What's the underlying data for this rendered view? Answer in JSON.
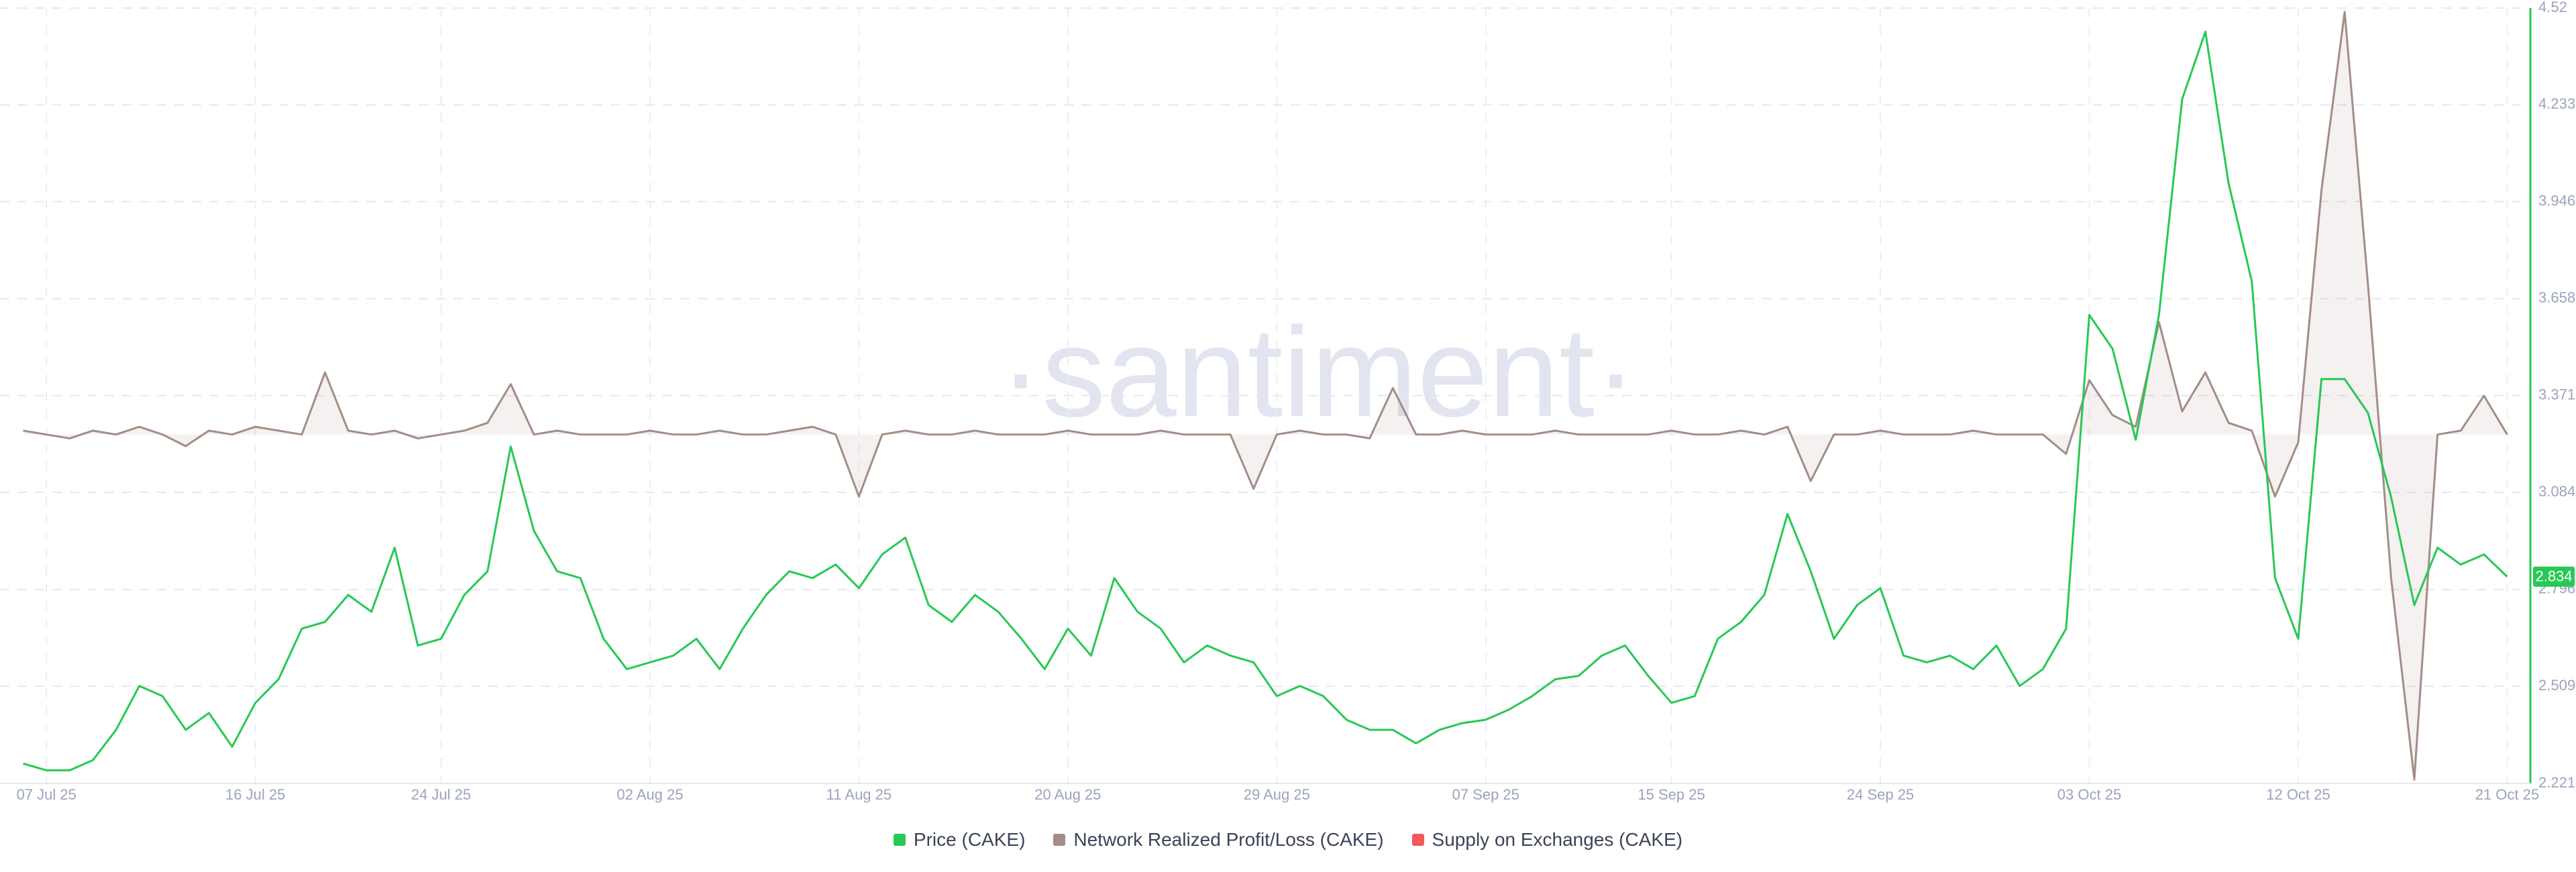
{
  "chart_data": {
    "type": "line",
    "watermark": "·santiment·",
    "x": [
      "2025-07-06",
      "2025-07-07",
      "2025-07-08",
      "2025-07-09",
      "2025-07-10",
      "2025-07-11",
      "2025-07-12",
      "2025-07-13",
      "2025-07-14",
      "2025-07-15",
      "2025-07-16",
      "2025-07-17",
      "2025-07-18",
      "2025-07-19",
      "2025-07-20",
      "2025-07-21",
      "2025-07-22",
      "2025-07-23",
      "2025-07-24",
      "2025-07-25",
      "2025-07-26",
      "2025-07-27",
      "2025-07-28",
      "2025-07-29",
      "2025-07-30",
      "2025-07-31",
      "2025-08-01",
      "2025-08-02",
      "2025-08-03",
      "2025-08-04",
      "2025-08-05",
      "2025-08-06",
      "2025-08-07",
      "2025-08-08",
      "2025-08-09",
      "2025-08-10",
      "2025-08-11",
      "2025-08-12",
      "2025-08-13",
      "2025-08-14",
      "2025-08-15",
      "2025-08-16",
      "2025-08-17",
      "2025-08-18",
      "2025-08-19",
      "2025-08-20",
      "2025-08-21",
      "2025-08-22",
      "2025-08-23",
      "2025-08-24",
      "2025-08-25",
      "2025-08-26",
      "2025-08-27",
      "2025-08-28",
      "2025-08-29",
      "2025-08-30",
      "2025-08-31",
      "2025-09-01",
      "2025-09-02",
      "2025-09-03",
      "2025-09-04",
      "2025-09-05",
      "2025-09-06",
      "2025-09-07",
      "2025-09-08",
      "2025-09-09",
      "2025-09-10",
      "2025-09-11",
      "2025-09-12",
      "2025-09-13",
      "2025-09-14",
      "2025-09-15",
      "2025-09-16",
      "2025-09-17",
      "2025-09-18",
      "2025-09-19",
      "2025-09-20",
      "2025-09-21",
      "2025-09-22",
      "2025-09-23",
      "2025-09-24",
      "2025-09-25",
      "2025-09-26",
      "2025-09-27",
      "2025-09-28",
      "2025-09-29",
      "2025-09-30",
      "2025-10-01",
      "2025-10-02",
      "2025-10-03",
      "2025-10-04",
      "2025-10-05",
      "2025-10-06",
      "2025-10-07",
      "2025-10-08",
      "2025-10-09",
      "2025-10-10",
      "2025-10-11",
      "2025-10-12",
      "2025-10-13",
      "2025-10-14",
      "2025-10-15",
      "2025-10-16",
      "2025-10-17",
      "2025-10-18",
      "2025-10-19",
      "2025-10-20",
      "2025-10-21"
    ],
    "xlim": [
      "2025-07-05",
      "2025-10-22"
    ],
    "xticks": [
      {
        "value": "2025-07-07",
        "label": "07 Jul 25"
      },
      {
        "value": "2025-07-16",
        "label": "16 Jul 25"
      },
      {
        "value": "2025-07-24",
        "label": "24 Jul 25"
      },
      {
        "value": "2025-08-02",
        "label": "02 Aug 25"
      },
      {
        "value": "2025-08-11",
        "label": "11 Aug 25"
      },
      {
        "value": "2025-08-20",
        "label": "20 Aug 25"
      },
      {
        "value": "2025-08-29",
        "label": "29 Aug 25"
      },
      {
        "value": "2025-09-07",
        "label": "07 Sep 25"
      },
      {
        "value": "2025-09-15",
        "label": "15 Sep 25"
      },
      {
        "value": "2025-09-24",
        "label": "24 Sep 25"
      },
      {
        "value": "2025-10-03",
        "label": "03 Oct 25"
      },
      {
        "value": "2025-10-12",
        "label": "12 Oct 25"
      },
      {
        "value": "2025-10-21",
        "label": "21 Oct 25"
      }
    ],
    "ylim": [
      2.221,
      4.52
    ],
    "yticks": [
      2.221,
      2.509,
      2.796,
      3.084,
      3.371,
      3.658,
      3.946,
      4.233,
      4.52
    ],
    "y2lim": [
      -9,
      11
    ],
    "grid": true,
    "series": [
      {
        "name": "Price (CAKE)",
        "color": "#26c953",
        "values": [
          2.28,
          2.26,
          2.26,
          2.29,
          2.38,
          2.51,
          2.48,
          2.38,
          2.43,
          2.33,
          2.46,
          2.53,
          2.68,
          2.7,
          2.78,
          2.73,
          2.92,
          2.63,
          2.65,
          2.78,
          2.85,
          3.22,
          2.97,
          2.85,
          2.83,
          2.65,
          2.56,
          2.58,
          2.6,
          2.65,
          2.56,
          2.68,
          2.78,
          2.85,
          2.83,
          2.87,
          2.8,
          2.9,
          2.95,
          2.75,
          2.7,
          2.78,
          2.73,
          2.65,
          2.56,
          2.68,
          2.6,
          2.83,
          2.73,
          2.68,
          2.58,
          2.63,
          2.6,
          2.58,
          2.48,
          2.51,
          2.48,
          2.41,
          2.38,
          2.38,
          2.34,
          2.38,
          2.4,
          2.41,
          2.44,
          2.48,
          2.53,
          2.54,
          2.6,
          2.63,
          2.54,
          2.46,
          2.48,
          2.65,
          2.7,
          2.78,
          3.02,
          2.85,
          2.65,
          2.75,
          2.8,
          2.6,
          2.58,
          2.6,
          2.56,
          2.63,
          2.51,
          2.56,
          2.68,
          3.61,
          3.51,
          3.24,
          3.61,
          4.25,
          4.45,
          4.0,
          3.71,
          2.83,
          2.65,
          3.42,
          3.42,
          3.32,
          3.07,
          2.75,
          2.92,
          2.87,
          2.9,
          2.834
        ]
      },
      {
        "name": "Network Realized Profit/Loss (CAKE)",
        "color": "#a38d86",
        "axis": "y2",
        "values": [
          0.1,
          0,
          -0.1,
          0.1,
          0,
          0.2,
          0,
          -0.3,
          0.1,
          0,
          0.2,
          0.1,
          0,
          1.6,
          0.1,
          0,
          0.1,
          -0.1,
          0,
          0.1,
          0.3,
          1.3,
          0,
          0.1,
          0,
          0,
          0,
          0.1,
          0,
          0,
          0.1,
          0,
          0,
          0.1,
          0.2,
          0,
          -1.6,
          0,
          0.1,
          0,
          0,
          0.1,
          0,
          0,
          0,
          0.1,
          0,
          0,
          0,
          0.1,
          0,
          0,
          0,
          -1.4,
          0,
          0.1,
          0,
          0,
          -0.1,
          1.2,
          0,
          0,
          0.1,
          0,
          0,
          0,
          0.1,
          0,
          0,
          0,
          0,
          0.1,
          0,
          0,
          0.1,
          0,
          0.2,
          -1.2,
          0,
          0,
          0.1,
          0,
          0,
          0,
          0.1,
          0,
          0,
          0,
          -0.5,
          1.4,
          0.5,
          0.2,
          2.9,
          0.6,
          1.6,
          0.3,
          0.1,
          -1.6,
          -0.2,
          6.3,
          10.9,
          3.9,
          -3.7,
          -8.9,
          0,
          0.1,
          1.0,
          0
        ]
      },
      {
        "name": "Supply on Exchanges (CAKE)",
        "color": "#f25a5a",
        "values": [
          null,
          null,
          null,
          null,
          null,
          null,
          null,
          null,
          null,
          null,
          null,
          null,
          null,
          null,
          null,
          null,
          null,
          null,
          null,
          null,
          null,
          null,
          null,
          null,
          null,
          null,
          null,
          null,
          null,
          null,
          null,
          null,
          null,
          null,
          null,
          null,
          null,
          null,
          null,
          null,
          null,
          null,
          null,
          null,
          null,
          null,
          null,
          null,
          null,
          null,
          null,
          null,
          null,
          null,
          null,
          null,
          null,
          null,
          null,
          null,
          null,
          null,
          null,
          null,
          null,
          null,
          null,
          null,
          null,
          null,
          null,
          null,
          null,
          null,
          null,
          null,
          null,
          null,
          null,
          null,
          null,
          null,
          null,
          null,
          null,
          null,
          null,
          null,
          null,
          null,
          null,
          null,
          null,
          null,
          null,
          null,
          null,
          null,
          null,
          null,
          null,
          null,
          null,
          null,
          null,
          null,
          null,
          null
        ]
      }
    ]
  }
}
